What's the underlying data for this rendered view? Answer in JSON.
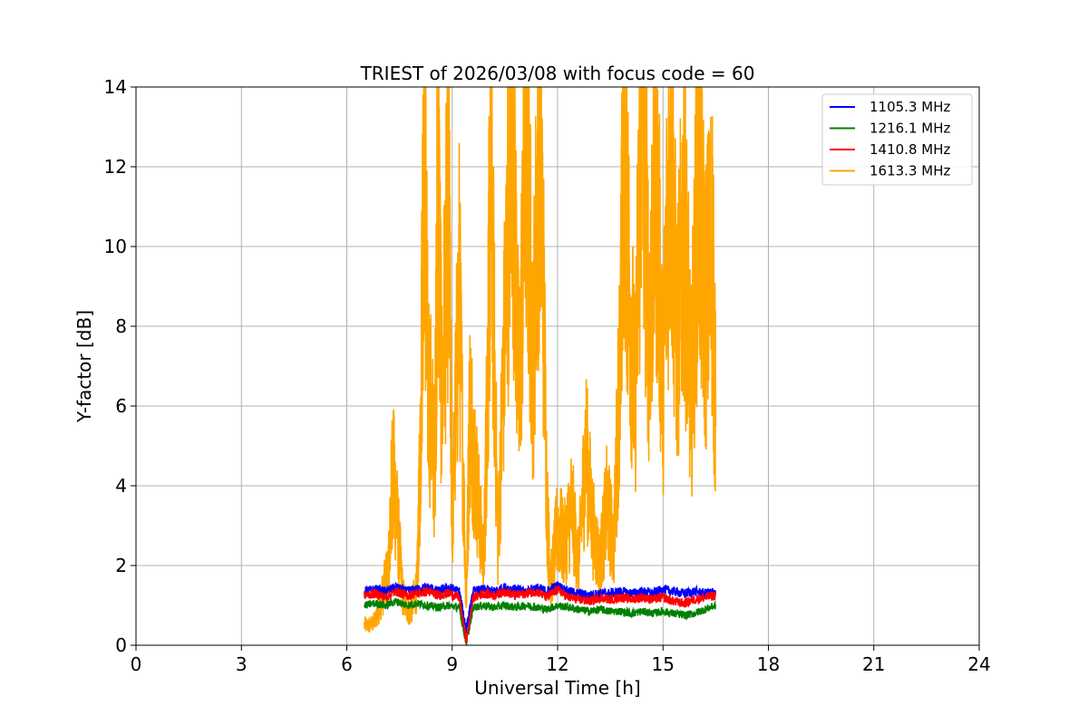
{
  "chart_data": {
    "type": "line",
    "title": "TRIEST of 2026/03/08 with focus code = 60",
    "xlabel": "Universal Time [h]",
    "ylabel": "Y-factor [dB]",
    "xlim": [
      0,
      24
    ],
    "ylim": [
      0,
      14
    ],
    "xticks": [
      0,
      3,
      6,
      9,
      12,
      15,
      18,
      21,
      24
    ],
    "yticks": [
      0,
      2,
      4,
      6,
      8,
      10,
      12,
      14
    ],
    "grid": true,
    "legend_position": "top-right",
    "series": [
      {
        "name": "1105.3 MHz",
        "color": "#0000ff",
        "x": [
          6.5,
          6.8,
          7.1,
          7.4,
          7.7,
          8.0,
          8.3,
          8.6,
          8.9,
          9.2,
          9.4,
          9.6,
          9.9,
          10.2,
          10.5,
          10.8,
          11.1,
          11.4,
          11.7,
          12.0,
          12.3,
          12.6,
          12.9,
          13.2,
          13.5,
          13.8,
          14.1,
          14.4,
          14.7,
          15.0,
          15.3,
          15.6,
          15.9,
          16.2,
          16.5
        ],
        "values": [
          1.35,
          1.4,
          1.35,
          1.45,
          1.35,
          1.4,
          1.45,
          1.35,
          1.45,
          1.35,
          0.4,
          1.35,
          1.4,
          1.35,
          1.45,
          1.4,
          1.35,
          1.45,
          1.35,
          1.5,
          1.35,
          1.3,
          1.25,
          1.3,
          1.3,
          1.35,
          1.3,
          1.35,
          1.3,
          1.4,
          1.35,
          1.3,
          1.35,
          1.3,
          1.35
        ]
      },
      {
        "name": "1216.1 MHz",
        "color": "#008000",
        "x": [
          6.5,
          6.8,
          7.1,
          7.4,
          7.7,
          8.0,
          8.3,
          8.6,
          8.9,
          9.2,
          9.4,
          9.6,
          9.9,
          10.2,
          10.5,
          10.8,
          11.1,
          11.4,
          11.7,
          12.0,
          12.3,
          12.6,
          12.9,
          13.2,
          13.5,
          13.8,
          14.1,
          14.4,
          14.7,
          15.0,
          15.3,
          15.6,
          15.9,
          16.2,
          16.5
        ],
        "values": [
          1.0,
          1.05,
          1.0,
          1.1,
          1.0,
          1.05,
          1.0,
          0.95,
          1.0,
          0.95,
          0.05,
          0.95,
          1.0,
          0.95,
          1.0,
          0.95,
          1.0,
          0.95,
          0.9,
          1.0,
          0.95,
          0.9,
          0.85,
          0.9,
          0.85,
          0.85,
          0.8,
          0.85,
          0.8,
          0.85,
          0.8,
          0.75,
          0.8,
          0.9,
          1.0
        ]
      },
      {
        "name": "1410.8 MHz",
        "color": "#ff0000",
        "x": [
          6.5,
          6.8,
          7.1,
          7.4,
          7.7,
          8.0,
          8.3,
          8.6,
          8.9,
          9.2,
          9.4,
          9.6,
          9.9,
          10.2,
          10.5,
          10.8,
          11.1,
          11.4,
          11.7,
          12.0,
          12.3,
          12.6,
          12.9,
          13.2,
          13.5,
          13.8,
          14.1,
          14.4,
          14.7,
          15.0,
          15.3,
          15.6,
          15.9,
          16.2,
          16.5
        ],
        "values": [
          1.25,
          1.3,
          1.2,
          1.35,
          1.25,
          1.3,
          1.35,
          1.25,
          1.3,
          1.2,
          0.1,
          1.2,
          1.3,
          1.25,
          1.35,
          1.25,
          1.3,
          1.35,
          1.2,
          1.4,
          1.2,
          1.15,
          1.1,
          1.2,
          1.15,
          1.2,
          1.15,
          1.2,
          1.15,
          1.2,
          1.1,
          1.05,
          1.15,
          1.2,
          1.25
        ]
      },
      {
        "name": "1613.3 MHz",
        "color": "#ffa500",
        "x": [
          6.5,
          6.8,
          7.0,
          7.2,
          7.3,
          7.4,
          7.6,
          7.8,
          8.0,
          8.1,
          8.2,
          8.3,
          8.5,
          8.6,
          8.7,
          8.9,
          9.0,
          9.2,
          9.4,
          9.5,
          9.7,
          9.9,
          10.0,
          10.1,
          10.3,
          10.5,
          10.7,
          10.9,
          11.1,
          11.3,
          11.5,
          11.7,
          11.8,
          12.0,
          12.2,
          12.4,
          12.6,
          12.8,
          13.0,
          13.2,
          13.4,
          13.6,
          13.8,
          13.9,
          14.0,
          14.2,
          14.4,
          14.6,
          14.8,
          15.0,
          15.2,
          15.4,
          15.6,
          15.8,
          16.0,
          16.2,
          16.4,
          16.5
        ],
        "values": [
          0.4,
          0.6,
          1.2,
          2.0,
          4.5,
          3.5,
          1.2,
          0.8,
          1.5,
          5.0,
          14.0,
          7.0,
          4.5,
          12.5,
          6.0,
          11.5,
          3.0,
          9.0,
          1.0,
          6.0,
          4.0,
          2.0,
          6.5,
          12.0,
          2.5,
          8.0,
          14.0,
          6.0,
          13.0,
          7.0,
          14.0,
          3.5,
          1.5,
          3.0,
          2.5,
          3.5,
          2.0,
          5.0,
          3.0,
          2.0,
          3.5,
          2.5,
          8.0,
          14.0,
          10.0,
          6.0,
          14.0,
          8.0,
          12.0,
          6.5,
          13.0,
          7.5,
          11.0,
          6.0,
          12.0,
          8.5,
          10.0,
          5.5
        ]
      }
    ]
  }
}
